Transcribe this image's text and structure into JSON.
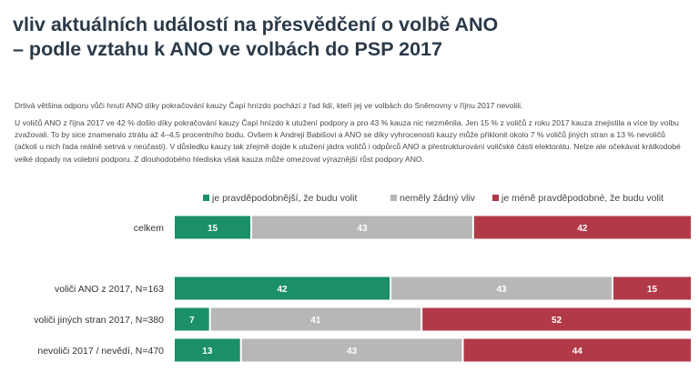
{
  "title_line1": "vliv aktuálních událostí na přesvědčení o volbě ANO",
  "title_line2": "– podle vztahu k ANO ve volbách do PSP 2017",
  "paragraph1": "Drtivá většina odporu vůči hnutí ANO díky pokračování kauzy Čapí hnízdo pochází z řad lidí, kteří jej ve volbách do Sněmovny v říjnu 2017 nevolili.",
  "paragraph2": "U voličů ANO z října 2017 ve 42 % došlo díky pokračování kauzy Čapí hnízdo k utužení podpory a pro 43 % kauza nic nezměnila. Jen 15 % z voličů z roku 2017 kauza znejistila a více by volbu zvažovali. To by sice znamenalo ztrátu až 4–4,5 procentního bodu. Ovšem k Andreji Babišovi a ANO se díky vyhrocenosti kauzy může přiklonit okolo 7 % voličů jiných stran a 13 % nevoličů (ačkoli u nich řada reálně setrvá v neúčasti). V důsledku kauzy tak zřejmě dojde k utužení jádra voličů i odpůrců ANO a přestrukturování voličské části elektorátu. Nelze ale očekávat krátkodobé velké dopady na volební podporu. Z dlouhodobého hlediska však kauza může omezovat výraznější růst podpory ANO.",
  "colors": {
    "green": "#1a8f6a",
    "gray": "#b7b7b7",
    "red": "#b23a48"
  },
  "chart_data": {
    "type": "bar",
    "orientation": "horizontal-stacked-100",
    "categories": [
      "celkem",
      "voliči ANO z 2017, N=163",
      "voliči jiných stran 2017, N=380",
      "nevoliči 2017 / nevědí, N=470"
    ],
    "series": [
      {
        "name": "je pravděpodobnější, že budu volit",
        "values": [
          15,
          42,
          7,
          13
        ]
      },
      {
        "name": "neměly žádný vliv",
        "values": [
          43,
          43,
          41,
          43
        ]
      },
      {
        "name": "je méně pravděpodobné, že budu volit",
        "values": [
          42,
          15,
          52,
          44
        ]
      }
    ],
    "xlim": [
      0,
      100
    ],
    "legend": "top",
    "grid": false
  }
}
